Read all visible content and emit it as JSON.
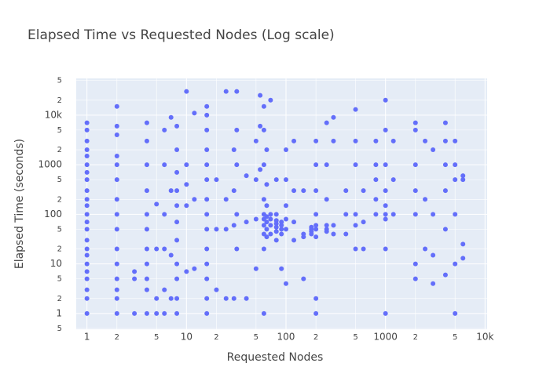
{
  "chart_data": {
    "type": "scatter",
    "title": "Elapsed Time vs Requested Nodes (Log scale)",
    "x_label": "Requested Nodes",
    "y_label": "Elapsed Time (seconds)",
    "log_x": true,
    "log_y": true,
    "grid": true,
    "color": "#636efa",
    "xlim": [
      0.78,
      10500
    ],
    "ylim": [
      0.48,
      55000
    ],
    "xticks": [
      1,
      2,
      5,
      10,
      {
        "value": 20,
        "label": "2"
      },
      {
        "value": 50,
        "label": "5"
      },
      100,
      {
        "value": 200,
        "label": "2"
      },
      {
        "value": 500,
        "label": "5"
      },
      1000,
      {
        "value": 2000,
        "label": "2"
      },
      {
        "value": 5000,
        "label": "5"
      },
      {
        "value": 10000,
        "label": "10k"
      }
    ],
    "yticks": [
      {
        "value": 0.5,
        "label": "5"
      },
      1,
      2,
      5,
      10,
      {
        "value": 20,
        "label": "2"
      },
      {
        "value": 50,
        "label": "5"
      },
      100,
      {
        "value": 200,
        "label": "2"
      },
      {
        "value": 500,
        "label": "5"
      },
      1000,
      {
        "value": 2000,
        "label": "2"
      },
      {
        "value": 5000,
        "label": "5"
      },
      {
        "value": 10000,
        "label": "10k"
      },
      {
        "value": 20000,
        "label": "2"
      },
      {
        "value": 50000,
        "label": "5"
      }
    ],
    "x": [
      1,
      1,
      1,
      1,
      1,
      1,
      1,
      1,
      1,
      1,
      1,
      1,
      1,
      1,
      1,
      1,
      1,
      1,
      1,
      1,
      1,
      1,
      1,
      2,
      2,
      2,
      2,
      2,
      2,
      2,
      2,
      2,
      2,
      2,
      2,
      2,
      2,
      2,
      3,
      3,
      3,
      4,
      4,
      4,
      4,
      4,
      4,
      4,
      4,
      4,
      4,
      4,
      5,
      5,
      5,
      5,
      6,
      6,
      6,
      6,
      6,
      6,
      7,
      7,
      7,
      7,
      8,
      8,
      8,
      8,
      8,
      8,
      8,
      8,
      8,
      8,
      8,
      10,
      10,
      10,
      10,
      10,
      12,
      12,
      12,
      16,
      16,
      16,
      16,
      16,
      16,
      16,
      16,
      16,
      16,
      16,
      16,
      16,
      16,
      20,
      20,
      20,
      25,
      25,
      25,
      25,
      30,
      30,
      30,
      30,
      32,
      32,
      32,
      32,
      32,
      40,
      40,
      40,
      50,
      50,
      50,
      50,
      55,
      55,
      55,
      60,
      60,
      60,
      60,
      60,
      60,
      60,
      60,
      60,
      60,
      64,
      64,
      64,
      64,
      64,
      64,
      64,
      70,
      70,
      70,
      70,
      70,
      80,
      80,
      80,
      80,
      80,
      80,
      80,
      90,
      90,
      90,
      90,
      90,
      100,
      100,
      100,
      100,
      100,
      100,
      120,
      120,
      120,
      120,
      150,
      150,
      150,
      150,
      180,
      180,
      180,
      180,
      200,
      200,
      200,
      200,
      200,
      200,
      200,
      200,
      200,
      256,
      256,
      256,
      256,
      256,
      256,
      300,
      300,
      300,
      300,
      400,
      400,
      400,
      500,
      500,
      500,
      500,
      500,
      500,
      600,
      600,
      600,
      800,
      800,
      800,
      800,
      800,
      1000,
      1000,
      1000,
      1000,
      1000,
      1000,
      1000,
      1000,
      1000,
      1200,
      1200,
      1200,
      2000,
      2000,
      2000,
      2000,
      2000,
      2000,
      2000,
      2500,
      2500,
      2500,
      3000,
      3000,
      3000,
      3000,
      4000,
      4000,
      4000,
      4000,
      4000,
      4000,
      5000,
      5000,
      5000,
      5000,
      5000,
      5000,
      6000,
      6000,
      6000,
      6000
    ],
    "y": [
      1,
      2,
      3,
      5,
      7,
      10,
      15,
      20,
      30,
      50,
      70,
      100,
      150,
      200,
      300,
      500,
      700,
      1000,
      1500,
      2000,
      3000,
      5000,
      7000,
      1,
      2,
      3,
      5,
      10,
      20,
      50,
      100,
      200,
      500,
      1000,
      1500,
      4000,
      6000,
      15000,
      1,
      5,
      7,
      1,
      3,
      5,
      10,
      20,
      50,
      100,
      300,
      1000,
      3000,
      7000,
      1,
      2,
      20,
      160,
      1,
      3,
      20,
      100,
      1000,
      5000,
      9000,
      2,
      15,
      300,
      1,
      2,
      5,
      10,
      30,
      70,
      150,
      300,
      700,
      2000,
      6000,
      30000,
      7,
      150,
      400,
      1000,
      8,
      200,
      11000,
      1,
      2,
      5,
      10,
      20,
      50,
      100,
      200,
      500,
      1000,
      2000,
      5000,
      10000,
      15000,
      3,
      50,
      500,
      2,
      50,
      30000,
      200,
      2,
      60,
      300,
      2000,
      30000,
      5000,
      1000,
      100,
      20,
      2,
      70,
      600,
      8,
      80,
      500,
      3000,
      25000,
      6000,
      800,
      1,
      20,
      40,
      60,
      80,
      100,
      200,
      1000,
      5000,
      15000,
      35,
      50,
      70,
      90,
      150,
      400,
      2000,
      20000,
      40,
      60,
      80,
      100,
      30,
      45,
      55,
      65,
      75,
      100,
      500,
      40,
      50,
      60,
      70,
      8,
      4,
      50,
      80,
      150,
      500,
      2000,
      30,
      70,
      300,
      3000,
      5,
      40,
      35,
      300,
      45,
      50,
      40,
      55,
      1,
      2,
      35,
      50,
      60,
      100,
      300,
      1000,
      3000,
      50,
      45,
      60,
      200,
      1000,
      7000,
      9000,
      60,
      40,
      3000,
      40,
      100,
      300,
      13000,
      100,
      60,
      1000,
      3000,
      20,
      70,
      300,
      20,
      100,
      200,
      500,
      1000,
      3000,
      1,
      20,
      80,
      100,
      150,
      300,
      1000,
      5000,
      20000,
      100,
      500,
      3000,
      5,
      10,
      100,
      300,
      1000,
      5000,
      7000,
      20,
      200,
      3000,
      4,
      15,
      100,
      2000,
      6,
      50,
      300,
      1000,
      3000,
      7000,
      1,
      10,
      100,
      500,
      1000,
      3000,
      13,
      25,
      500,
      600
    ]
  }
}
